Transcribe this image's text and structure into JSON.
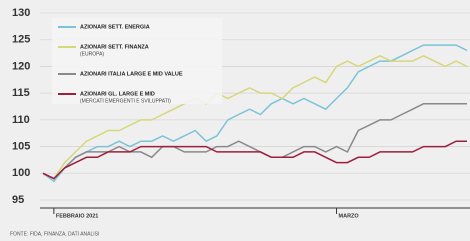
{
  "chart_data": {
    "type": "line",
    "source": "FONTE: FIDA, FINANZA, DATI ANALISI",
    "categories": [
      null,
      "FEBBRAIO 2021",
      null,
      null,
      null,
      null,
      null,
      null,
      null,
      null,
      null,
      null,
      null,
      null,
      null,
      null,
      null,
      null,
      null,
      null,
      null,
      null,
      null,
      null,
      null,
      null,
      null,
      "MARZO",
      null,
      null,
      null,
      null,
      null,
      null,
      null,
      null,
      null,
      null,
      null,
      null
    ],
    "series": [
      {
        "name": "AZIONARI SETT. ENERGIA",
        "color": "#7cc3d9",
        "values": [
          100,
          98.5,
          101,
          103,
          104,
          105,
          105,
          106,
          105,
          106,
          106,
          107,
          106,
          107,
          108,
          106,
          107,
          110,
          111,
          112,
          111,
          113,
          114,
          113,
          114,
          113,
          112,
          114,
          116,
          119,
          120,
          121,
          121,
          122,
          123,
          124,
          124,
          124,
          124,
          123
        ]
      },
      {
        "name": "AZIONARI SETT. FINANZA",
        "note": "(EUROPA)",
        "color": "#d6d77a",
        "values": [
          100,
          99,
          102,
          104,
          106,
          107,
          108,
          108,
          109,
          110,
          110,
          111,
          112,
          113,
          114,
          113,
          115,
          114,
          115,
          116,
          115,
          115,
          114,
          116,
          117,
          118,
          117,
          120,
          121,
          120,
          121,
          122,
          121,
          121,
          121,
          122,
          121,
          120,
          121,
          120
        ]
      },
      {
        "name": "AZIONARI ITALIA LARGE E MID VALUE",
        "color": "#8a8a8a",
        "values": [
          100,
          99,
          101,
          103,
          104,
          104,
          104,
          105,
          104,
          104,
          103,
          105,
          105,
          104,
          104,
          104,
          105,
          105,
          106,
          105,
          104,
          103,
          103,
          104,
          105,
          105,
          104,
          105,
          104,
          108,
          109,
          110,
          110,
          111,
          112,
          113,
          113,
          113,
          113,
          113
        ]
      },
      {
        "name": "AZIONARI GL. LARGE E MID",
        "note": "(MERCATI EMERGENTI E SVILUPPATI)",
        "color": "#9e1f3c",
        "values": [
          100,
          99,
          101,
          102,
          103,
          103,
          104,
          104,
          104,
          105,
          105,
          105,
          105,
          105,
          105,
          105,
          104,
          104,
          104,
          104,
          104,
          103,
          103,
          103,
          104,
          104,
          103,
          102,
          102,
          103,
          103,
          104,
          104,
          104,
          104,
          105,
          105,
          105,
          106,
          106
        ]
      }
    ],
    "ylim": [
      93.5,
      131.5
    ],
    "yticks": [
      95,
      100,
      105,
      110,
      115,
      120,
      125,
      130
    ],
    "grid": true
  }
}
